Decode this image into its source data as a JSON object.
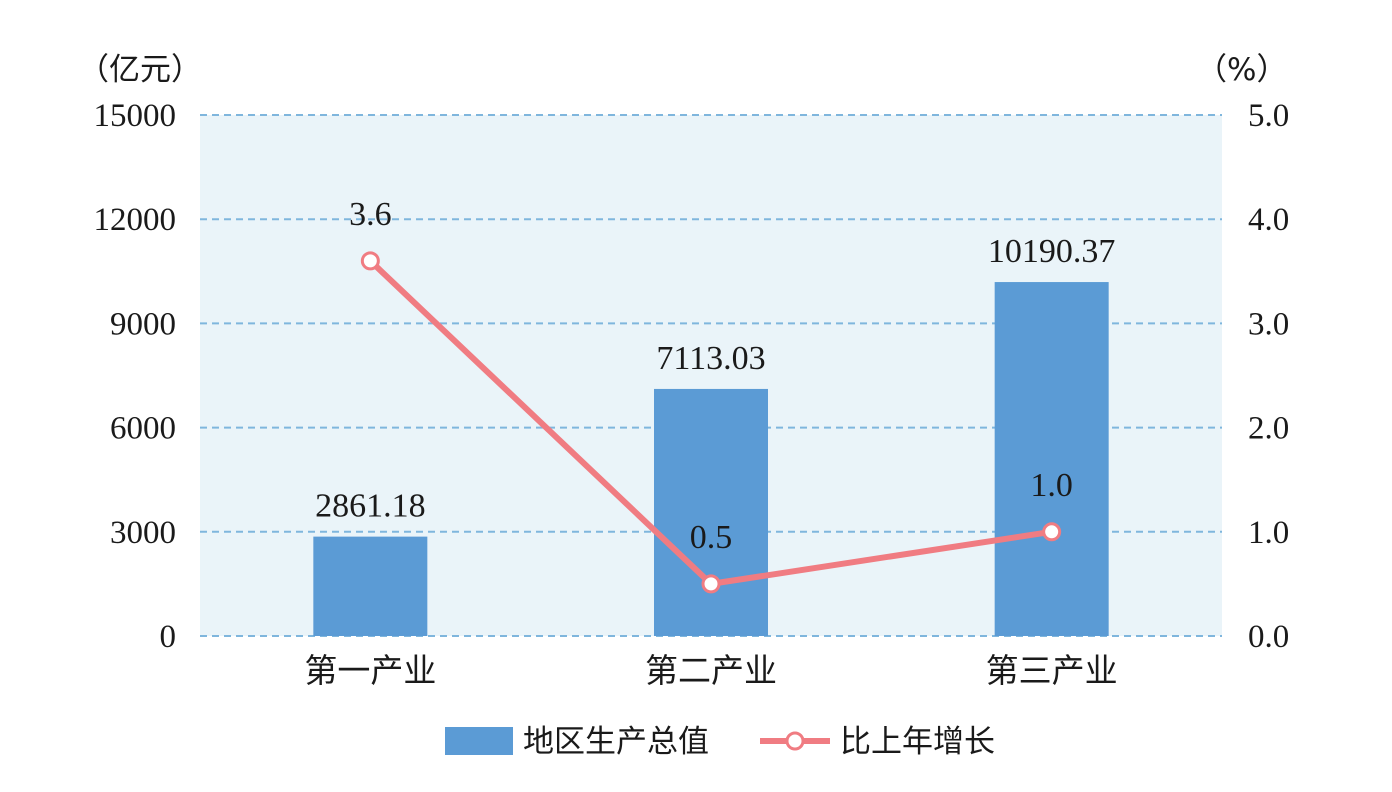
{
  "chart_data": {
    "type": "bar",
    "categories": [
      "第一产业",
      "第二产业",
      "第三产业"
    ],
    "series": [
      {
        "name": "地区生产总值",
        "type": "bar",
        "axis": "left",
        "values": [
          2861.18,
          7113.03,
          10190.37
        ],
        "labels": [
          "2861.18",
          "7113.03",
          "10190.37"
        ],
        "color": "#5b9bd5"
      },
      {
        "name": "比上年增长",
        "type": "line",
        "axis": "right",
        "values": [
          3.6,
          0.5,
          1.0
        ],
        "labels": [
          "3.6",
          "0.5",
          "1.0"
        ],
        "color": "#f07c82"
      }
    ],
    "left_axis": {
      "unit": "（亿元）",
      "min": 0,
      "max": 15000,
      "ticks": [
        "0",
        "3000",
        "6000",
        "9000",
        "12000",
        "15000"
      ]
    },
    "right_axis": {
      "unit": "（%）",
      "min": 0,
      "max": 5,
      "ticks": [
        "0.0",
        "1.0",
        "2.0",
        "3.0",
        "4.0",
        "5.0"
      ]
    },
    "plot_background": "#eaf4f9",
    "grid_color": "#7fb6dd",
    "grid": true,
    "legend_position": "bottom"
  }
}
